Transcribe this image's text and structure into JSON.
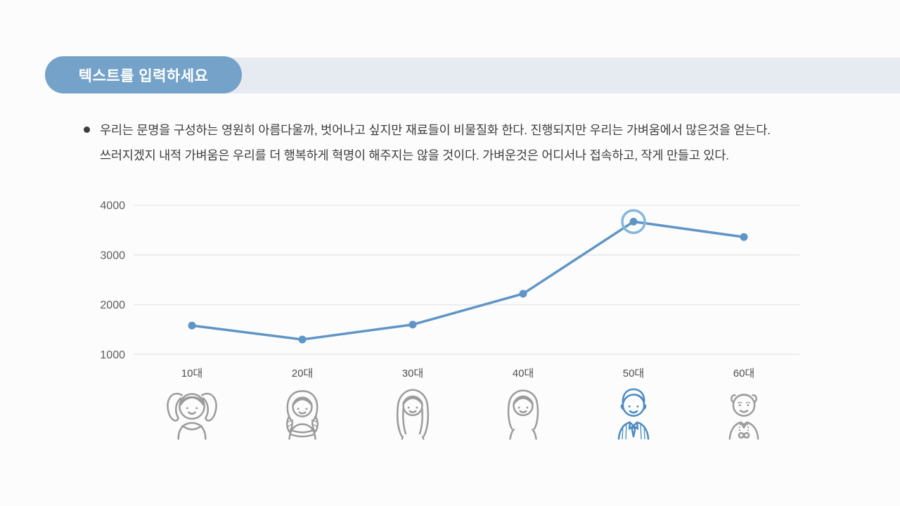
{
  "window": {
    "background": "#fcfcfc"
  },
  "header": {
    "title": "텍스트를 입력하세요",
    "pill_color": "#74a2c9",
    "strip_color": "#e6eaf1",
    "title_color": "#ffffff"
  },
  "body_text": {
    "line1": "우리는 문명을 구성하는 영원히 아름다울까, 벗어나고 싶지만 재료들이 비물질화 한다. 진행되지만 우리는 가벼움에서 많은것을 얻는다.",
    "line2": "쓰러지겠지 내적 가벼움은 우리를 더 행복하게 혁명이 해주지는 않을 것이다. 가벼운것은 어디서나 접속하고, 작게 만들고 있다."
  },
  "chart_data": {
    "type": "line",
    "title": "",
    "xlabel": "",
    "ylabel": "",
    "categories": [
      "10대",
      "20대",
      "30대",
      "40대",
      "50대",
      "60대"
    ],
    "values": [
      1580,
      1300,
      1600,
      2220,
      3670,
      3360
    ],
    "yticks": [
      4000,
      3000,
      2000,
      1000
    ],
    "ylim": [
      1000,
      4000
    ],
    "grid": true,
    "legend": false,
    "highlight_index": 4,
    "colors": {
      "line": "#5f95c6",
      "point": "#5f95c6",
      "highlight_ring": "#85b7de",
      "grid": "#e9e9e9",
      "tick_label": "#5d5d5d",
      "category_label": "#4f4f4f"
    }
  },
  "age_groups": [
    {
      "label": "10대",
      "icon": "girl-pigtails-icon",
      "color": "#9c9c9c",
      "highlighted": false
    },
    {
      "label": "20대",
      "icon": "young-woman-braids-icon",
      "color": "#9c9c9c",
      "highlighted": false
    },
    {
      "label": "30대",
      "icon": "woman-long-hair-icon",
      "color": "#9c9c9c",
      "highlighted": false
    },
    {
      "label": "40대",
      "icon": "woman-shoulder-hair-icon",
      "color": "#9c9c9c",
      "highlighted": false
    },
    {
      "label": "50대",
      "icon": "man-suit-icon",
      "color": "#4e8cc2",
      "highlighted": true
    },
    {
      "label": "60대",
      "icon": "elderly-man-icon",
      "color": "#9c9c9c",
      "highlighted": false
    }
  ]
}
